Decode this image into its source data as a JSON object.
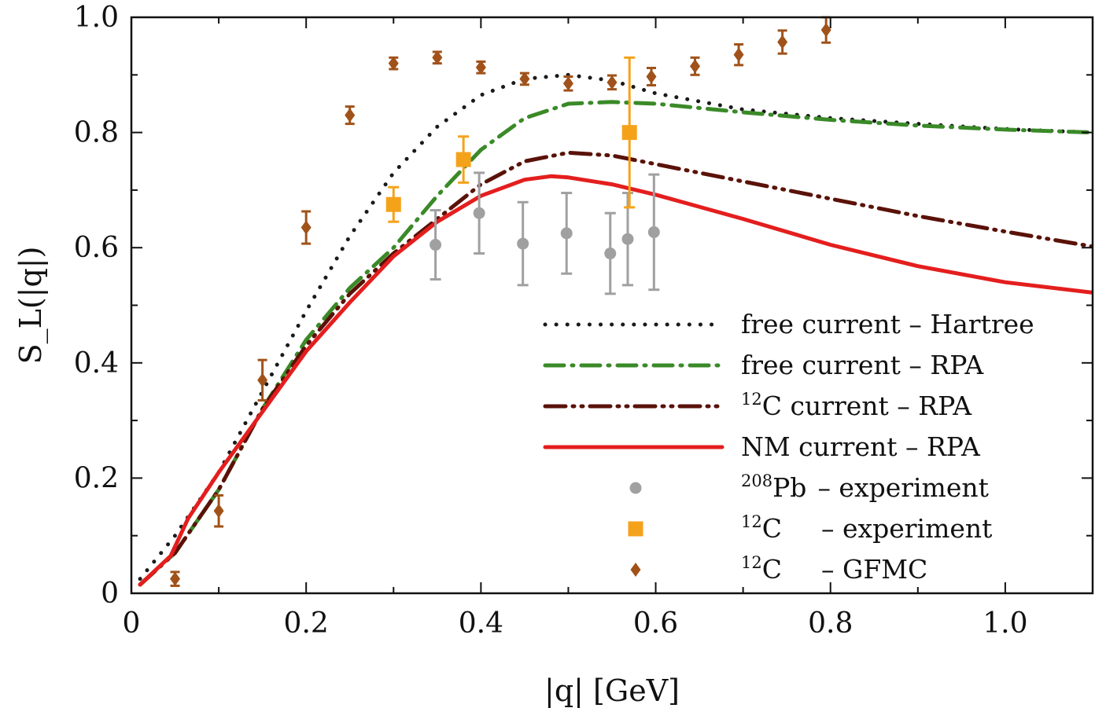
{
  "chart_data": {
    "type": "line",
    "title": "",
    "xlabel": "|q|   [GeV]",
    "ylabel": "S_L(|q|)",
    "xlim": [
      0,
      1.1
    ],
    "ylim": [
      0,
      1.0
    ],
    "xticks": [
      {
        "v": 0,
        "label": "0"
      },
      {
        "v": 0.2,
        "label": "0.2"
      },
      {
        "v": 0.4,
        "label": "0.4"
      },
      {
        "v": 0.6,
        "label": "0.6"
      },
      {
        "v": 0.8,
        "label": "0.8"
      },
      {
        "v": 1.0,
        "label": "1.0"
      }
    ],
    "yticks": [
      {
        "v": 0,
        "label": "0"
      },
      {
        "v": 0.2,
        "label": "0.2"
      },
      {
        "v": 0.4,
        "label": "0.4"
      },
      {
        "v": 0.6,
        "label": "0.6"
      },
      {
        "v": 0.8,
        "label": "0.8"
      },
      {
        "v": 1.0,
        "label": "1.0"
      }
    ],
    "series": [
      {
        "name": "free current – Hartree",
        "legend_parts": [
          "free current",
          "–",
          "Hartree"
        ],
        "style": "dotted",
        "color": "#1a1a1a",
        "points": [
          [
            0.01,
            0.025
          ],
          [
            0.05,
            0.1
          ],
          [
            0.1,
            0.21
          ],
          [
            0.15,
            0.35
          ],
          [
            0.2,
            0.49
          ],
          [
            0.25,
            0.62
          ],
          [
            0.3,
            0.73
          ],
          [
            0.35,
            0.81
          ],
          [
            0.4,
            0.865
          ],
          [
            0.45,
            0.893
          ],
          [
            0.5,
            0.9
          ],
          [
            0.55,
            0.89
          ],
          [
            0.6,
            0.868
          ],
          [
            0.7,
            0.84
          ],
          [
            0.8,
            0.825
          ],
          [
            0.9,
            0.815
          ],
          [
            1.0,
            0.806
          ],
          [
            1.1,
            0.8
          ]
        ]
      },
      {
        "name": "free current – RPA",
        "legend_parts": [
          "free current",
          "–",
          "RPA"
        ],
        "style": "dashdot",
        "color": "#3a8a28",
        "points": [
          [
            0.01,
            0.015
          ],
          [
            0.05,
            0.07
          ],
          [
            0.1,
            0.18
          ],
          [
            0.15,
            0.32
          ],
          [
            0.2,
            0.44
          ],
          [
            0.25,
            0.53
          ],
          [
            0.3,
            0.6
          ],
          [
            0.35,
            0.69
          ],
          [
            0.4,
            0.77
          ],
          [
            0.45,
            0.825
          ],
          [
            0.5,
            0.85
          ],
          [
            0.55,
            0.853
          ],
          [
            0.6,
            0.85
          ],
          [
            0.7,
            0.835
          ],
          [
            0.8,
            0.822
          ],
          [
            0.9,
            0.812
          ],
          [
            1.0,
            0.805
          ],
          [
            1.1,
            0.8
          ]
        ]
      },
      {
        "name": "12C current – RPA",
        "legend_parts": [
          "current",
          "–",
          "RPA"
        ],
        "legend_sup": "12",
        "legend_main": "C",
        "style": "dashdotdot",
        "color": "#5a1208",
        "points": [
          [
            0.01,
            0.015
          ],
          [
            0.05,
            0.07
          ],
          [
            0.1,
            0.18
          ],
          [
            0.15,
            0.32
          ],
          [
            0.2,
            0.43
          ],
          [
            0.25,
            0.52
          ],
          [
            0.3,
            0.59
          ],
          [
            0.35,
            0.65
          ],
          [
            0.4,
            0.71
          ],
          [
            0.45,
            0.75
          ],
          [
            0.5,
            0.765
          ],
          [
            0.55,
            0.76
          ],
          [
            0.6,
            0.745
          ],
          [
            0.7,
            0.715
          ],
          [
            0.8,
            0.685
          ],
          [
            0.9,
            0.655
          ],
          [
            1.0,
            0.628
          ],
          [
            1.1,
            0.602
          ]
        ]
      },
      {
        "name": "NM current – RPA",
        "legend_parts": [
          "NM current",
          "–",
          "RPA"
        ],
        "style": "solid",
        "color": "#e41e1e",
        "points": [
          [
            0.01,
            0.015
          ],
          [
            0.045,
            0.065
          ],
          [
            0.065,
            0.13
          ],
          [
            0.1,
            0.21
          ],
          [
            0.15,
            0.315
          ],
          [
            0.2,
            0.42
          ],
          [
            0.25,
            0.505
          ],
          [
            0.3,
            0.585
          ],
          [
            0.35,
            0.645
          ],
          [
            0.4,
            0.69
          ],
          [
            0.45,
            0.718
          ],
          [
            0.48,
            0.724
          ],
          [
            0.5,
            0.722
          ],
          [
            0.55,
            0.71
          ],
          [
            0.6,
            0.692
          ],
          [
            0.7,
            0.65
          ],
          [
            0.8,
            0.605
          ],
          [
            0.9,
            0.568
          ],
          [
            1.0,
            0.54
          ],
          [
            1.1,
            0.522
          ]
        ]
      }
    ],
    "markers": [
      {
        "name": "208Pb – experiment",
        "legend_sup": "208",
        "legend_main": "Pb",
        "legend_rest": "– experiment",
        "shape": "circle",
        "color": "#a0a0a0",
        "points": [
          [
            0.348,
            0.605,
            0.06
          ],
          [
            0.398,
            0.66,
            0.07
          ],
          [
            0.448,
            0.607,
            0.072
          ],
          [
            0.498,
            0.625,
            0.07
          ],
          [
            0.548,
            0.59,
            0.07
          ],
          [
            0.568,
            0.615,
            0.08
          ],
          [
            0.598,
            0.627,
            0.1
          ]
        ]
      },
      {
        "name": "12C – experiment",
        "legend_sup": "12",
        "legend_main": "C",
        "legend_rest": "– experiment",
        "shape": "square",
        "color": "#f5a21b",
        "points": [
          [
            0.3,
            0.675,
            0.03
          ],
          [
            0.38,
            0.753,
            0.04
          ],
          [
            0.57,
            0.8,
            0.13
          ]
        ]
      },
      {
        "name": "12C – GFMC",
        "legend_sup": "12",
        "legend_main": "C",
        "legend_rest": "– GFMC",
        "shape": "diamond",
        "color": "#a0521a",
        "points": [
          [
            0.05,
            0.025,
            0.012
          ],
          [
            0.1,
            0.143,
            0.027
          ],
          [
            0.15,
            0.37,
            0.035
          ],
          [
            0.2,
            0.635,
            0.028
          ],
          [
            0.25,
            0.83,
            0.015
          ],
          [
            0.3,
            0.92,
            0.01
          ],
          [
            0.35,
            0.93,
            0.01
          ],
          [
            0.4,
            0.913,
            0.01
          ],
          [
            0.45,
            0.893,
            0.01
          ],
          [
            0.5,
            0.885,
            0.012
          ],
          [
            0.55,
            0.887,
            0.012
          ],
          [
            0.595,
            0.897,
            0.015
          ],
          [
            0.645,
            0.915,
            0.015
          ],
          [
            0.695,
            0.935,
            0.018
          ],
          [
            0.745,
            0.957,
            0.02
          ],
          [
            0.795,
            0.978,
            0.022
          ]
        ]
      }
    ],
    "legend_position": "bottom-right"
  }
}
